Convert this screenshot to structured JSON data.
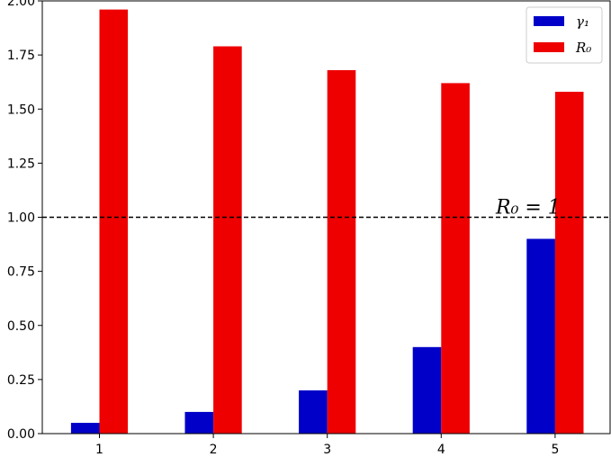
{
  "chart_data": {
    "type": "bar",
    "categories": [
      "1",
      "2",
      "3",
      "4",
      "5"
    ],
    "series": [
      {
        "name": "γ₁",
        "values": [
          0.05,
          0.1,
          0.2,
          0.4,
          0.9
        ],
        "color": "#0000c8"
      },
      {
        "name": "R₀",
        "values": [
          1.96,
          1.79,
          1.68,
          1.62,
          1.58
        ],
        "color": "#ee0000"
      }
    ],
    "title": "",
    "xlabel": "",
    "ylabel": "",
    "ylim": [
      0,
      2.0
    ],
    "yticks": [
      "0.00",
      "0.25",
      "0.50",
      "0.75",
      "1.00",
      "1.25",
      "1.50",
      "1.75",
      "2.00"
    ],
    "reference_line": {
      "y": 1.0,
      "style": "dashed",
      "label": "R₀ = 1"
    },
    "legend": {
      "placement": "top-right"
    },
    "grid": false
  }
}
